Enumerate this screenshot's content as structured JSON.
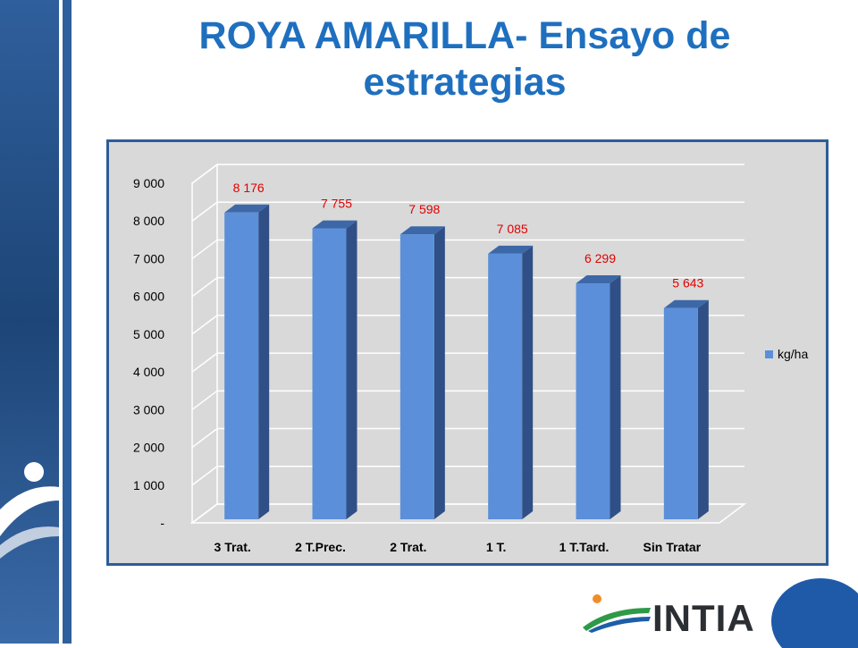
{
  "slide": {
    "title": "ROYA AMARILLA- Ensayo de estrategias",
    "logo_text": "INTIA"
  },
  "colors": {
    "title": "#1f6fbf",
    "bar_front": "#5b8fd9",
    "bar_side": "#2f4f86",
    "bar_top": "#3d68a8",
    "data_label": "#e00000",
    "frame_border": "#2d5c99",
    "plot_bg": "#d9d9d9"
  },
  "chart_data": {
    "type": "bar",
    "categories": [
      "3 Trat.",
      "2 T.Prec.",
      "2 Trat.",
      "1 T.",
      "1 T.Tard.",
      "Sin Tratar"
    ],
    "series": [
      {
        "name": "kg/ha",
        "values": [
          8176,
          7755,
          7598,
          7085,
          6299,
          5643
        ]
      }
    ],
    "data_labels": [
      "8 176",
      "7 755",
      "7 598",
      "7 085",
      "6 299",
      "5 643"
    ],
    "y_ticks": [
      0,
      1000,
      2000,
      3000,
      4000,
      5000,
      6000,
      7000,
      8000,
      9000
    ],
    "y_tick_labels": [
      "-",
      "1 000",
      "2 000",
      "3 000",
      "4 000",
      "5 000",
      "6 000",
      "7 000",
      "8 000",
      "9 000"
    ],
    "ylim": [
      0,
      9000
    ],
    "grid": true,
    "legend_position": "right",
    "three_d": true
  }
}
